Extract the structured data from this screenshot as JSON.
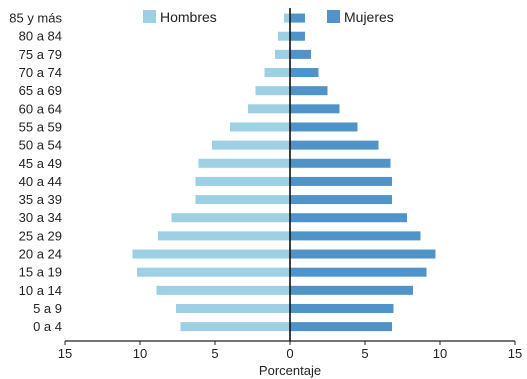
{
  "chart_data": {
    "type": "bar",
    "orientation": "horizontal-population-pyramid",
    "categories": [
      "0 a 4",
      "5 a 9",
      "10 a 14",
      "15 a 19",
      "20 a 24",
      "25 a 29",
      "30 a 34",
      "35 a 39",
      "40 a 44",
      "45 a 49",
      "50 a 54",
      "55 a 59",
      "60 a 64",
      "65 a 69",
      "70 a 74",
      "75 a 79",
      "80 a 84",
      "85 y más"
    ],
    "series": [
      {
        "name": "Hombres",
        "color": "#9dd0e3",
        "side": "left",
        "values": [
          7.3,
          7.6,
          8.9,
          10.2,
          10.5,
          8.8,
          7.9,
          6.3,
          6.3,
          6.1,
          5.2,
          4.0,
          2.8,
          2.3,
          1.7,
          1.0,
          0.8,
          0.4
        ]
      },
      {
        "name": "Mujeres",
        "color": "#4f93c8",
        "side": "right",
        "values": [
          6.8,
          6.9,
          8.2,
          9.1,
          9.7,
          8.7,
          7.8,
          6.8,
          6.8,
          6.7,
          5.9,
          4.5,
          3.3,
          2.5,
          1.9,
          1.4,
          1.0,
          1.0
        ]
      }
    ],
    "xlabel": "Porcentaje",
    "xlim": [
      -15,
      15
    ],
    "xticks": [
      -15,
      -10,
      -5,
      0,
      5,
      10,
      15
    ],
    "xtick_labels": [
      "15",
      "10",
      "5",
      "0",
      "5",
      "10",
      "15"
    ],
    "grid": false,
    "legend_position": "top"
  }
}
